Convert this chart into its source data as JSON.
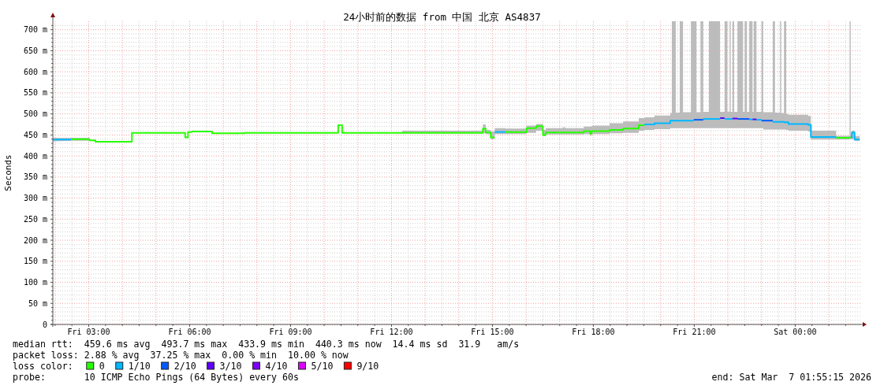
{
  "chart_data": {
    "type": "line",
    "title": "24小时前的数据 from 中国 北京 AS4837",
    "ylabel": "Seconds",
    "legend_title": "loss color:",
    "legend": "bottom",
    "grid": true,
    "xlim": [
      "2026-03-06T01:56",
      "2026-03-07T01:59"
    ],
    "xticks": [
      {
        "value": "2026-03-06T02:00",
        "label": null
      },
      {
        "value": "2026-03-06T02:30",
        "label": null
      },
      {
        "value": "2026-03-06T03:00",
        "label": "Fri 03:00"
      },
      {
        "value": "2026-03-06T03:30",
        "label": null
      },
      {
        "value": "2026-03-06T04:00",
        "label": null
      },
      {
        "value": "2026-03-06T04:30",
        "label": null
      },
      {
        "value": "2026-03-06T05:00",
        "label": null
      },
      {
        "value": "2026-03-06T05:30",
        "label": null
      },
      {
        "value": "2026-03-06T06:00",
        "label": "Fri 06:00"
      },
      {
        "value": "2026-03-06T06:30",
        "label": null
      },
      {
        "value": "2026-03-06T07:00",
        "label": null
      },
      {
        "value": "2026-03-06T07:30",
        "label": null
      },
      {
        "value": "2026-03-06T08:00",
        "label": null
      },
      {
        "value": "2026-03-06T08:30",
        "label": null
      },
      {
        "value": "2026-03-06T09:00",
        "label": "Fri 09:00"
      },
      {
        "value": "2026-03-06T09:30",
        "label": null
      },
      {
        "value": "2026-03-06T10:00",
        "label": null
      },
      {
        "value": "2026-03-06T10:30",
        "label": null
      },
      {
        "value": "2026-03-06T11:00",
        "label": null
      },
      {
        "value": "2026-03-06T11:30",
        "label": null
      },
      {
        "value": "2026-03-06T12:00",
        "label": "Fri 12:00"
      },
      {
        "value": "2026-03-06T12:30",
        "label": null
      },
      {
        "value": "2026-03-06T13:00",
        "label": null
      },
      {
        "value": "2026-03-06T13:30",
        "label": null
      },
      {
        "value": "2026-03-06T14:00",
        "label": null
      },
      {
        "value": "2026-03-06T14:30",
        "label": null
      },
      {
        "value": "2026-03-06T15:00",
        "label": "Fri 15:00"
      },
      {
        "value": "2026-03-06T15:30",
        "label": null
      },
      {
        "value": "2026-03-06T16:00",
        "label": null
      },
      {
        "value": "2026-03-06T16:30",
        "label": null
      },
      {
        "value": "2026-03-06T17:00",
        "label": null
      },
      {
        "value": "2026-03-06T17:30",
        "label": null
      },
      {
        "value": "2026-03-06T18:00",
        "label": "Fri 18:00"
      },
      {
        "value": "2026-03-06T18:30",
        "label": null
      },
      {
        "value": "2026-03-06T19:00",
        "label": null
      },
      {
        "value": "2026-03-06T19:30",
        "label": null
      },
      {
        "value": "2026-03-06T20:00",
        "label": null
      },
      {
        "value": "2026-03-06T20:30",
        "label": null
      },
      {
        "value": "2026-03-06T21:00",
        "label": "Fri 21:00"
      },
      {
        "value": "2026-03-06T21:30",
        "label": null
      },
      {
        "value": "2026-03-06T22:00",
        "label": null
      },
      {
        "value": "2026-03-06T22:30",
        "label": null
      },
      {
        "value": "2026-03-06T23:00",
        "label": null
      },
      {
        "value": "2026-03-06T23:30",
        "label": null
      },
      {
        "value": "2026-03-07T00:00",
        "label": "Sat 00:00"
      },
      {
        "value": "2026-03-07T00:30",
        "label": null
      },
      {
        "value": "2026-03-07T01:00",
        "label": null
      },
      {
        "value": "2026-03-07T01:30",
        "label": null
      }
    ],
    "ylim": [
      0,
      720
    ],
    "yticks": [
      0,
      {
        "value": 10,
        "label": null
      },
      {
        "value": 20,
        "label": null
      },
      {
        "value": 30,
        "label": null
      },
      {
        "value": 40,
        "label": null
      },
      {
        "value": 50,
        "label": "50 m"
      },
      {
        "value": 60,
        "label": null
      },
      {
        "value": 70,
        "label": null
      },
      {
        "value": 80,
        "label": null
      },
      {
        "value": 90,
        "label": null
      },
      {
        "value": 100,
        "label": "100 m"
      },
      {
        "value": 110,
        "label": null
      },
      {
        "value": 120,
        "label": null
      },
      {
        "value": 130,
        "label": null
      },
      {
        "value": 140,
        "label": null
      },
      {
        "value": 150,
        "label": "150 m"
      },
      {
        "value": 160,
        "label": null
      },
      {
        "value": 170,
        "label": null
      },
      {
        "value": 180,
        "label": null
      },
      {
        "value": 190,
        "label": null
      },
      {
        "value": 200,
        "label": "200 m"
      },
      {
        "value": 210,
        "label": null
      },
      {
        "value": 220,
        "label": null
      },
      {
        "value": 230,
        "label": null
      },
      {
        "value": 240,
        "label": null
      },
      {
        "value": 250,
        "label": "250 m"
      },
      {
        "value": 260,
        "label": null
      },
      {
        "value": 270,
        "label": null
      },
      {
        "value": 280,
        "label": null
      },
      {
        "value": 290,
        "label": null
      },
      {
        "value": 300,
        "label": "300 m"
      },
      {
        "value": 310,
        "label": null
      },
      {
        "value": 320,
        "label": null
      },
      {
        "value": 330,
        "label": null
      },
      {
        "value": 340,
        "label": null
      },
      {
        "value": 350,
        "label": "350 m"
      },
      {
        "value": 360,
        "label": null
      },
      {
        "value": 370,
        "label": null
      },
      {
        "value": 380,
        "label": null
      },
      {
        "value": 390,
        "label": null
      },
      {
        "value": 400,
        "label": "400 m"
      },
      {
        "value": 410,
        "label": null
      },
      {
        "value": 420,
        "label": null
      },
      {
        "value": 430,
        "label": null
      },
      {
        "value": 440,
        "label": null
      },
      {
        "value": 450,
        "label": "450 m"
      },
      {
        "value": 460,
        "label": null
      },
      {
        "value": 470,
        "label": null
      },
      {
        "value": 480,
        "label": null
      },
      {
        "value": 490,
        "label": null
      },
      {
        "value": 500,
        "label": "500 m"
      },
      {
        "value": 510,
        "label": null
      },
      {
        "value": 520,
        "label": null
      },
      {
        "value": 530,
        "label": null
      },
      {
        "value": 540,
        "label": null
      },
      {
        "value": 550,
        "label": "550 m"
      },
      {
        "value": 560,
        "label": null
      },
      {
        "value": 570,
        "label": null
      },
      {
        "value": 580,
        "label": null
      },
      {
        "value": 590,
        "label": null
      },
      {
        "value": 600,
        "label": "600 m"
      },
      {
        "value": 610,
        "label": null
      },
      {
        "value": 620,
        "label": null
      },
      {
        "value": 630,
        "label": null
      },
      {
        "value": 640,
        "label": null
      },
      {
        "value": 650,
        "label": "650 m"
      },
      {
        "value": 660,
        "label": null
      },
      {
        "value": 670,
        "label": null
      },
      {
        "value": 680,
        "label": null
      },
      {
        "value": 690,
        "label": null
      },
      {
        "value": 700,
        "label": "700 m"
      },
      {
        "value": 710,
        "label": null
      }
    ],
    "series": [
      {
        "name": "0",
        "color": "#26ff00",
        "x": [
          "2026-03-06T01:56",
          "2026-03-06T02:29",
          "2026-03-06T03:01",
          "2026-03-06T03:01",
          "2026-03-06T03:12",
          "2026-03-06T03:12",
          "2026-03-06T04:17",
          "2026-03-06T04:17",
          "2026-03-06T05:52",
          "2026-03-06T05:52",
          "2026-03-06T05:57",
          "2026-03-06T05:57",
          "2026-03-06T06:04",
          "2026-03-06T06:04",
          "2026-03-06T06:40",
          "2026-03-06T06:40",
          "2026-03-06T07:38",
          "2026-03-06T07:38",
          "2026-03-06T10:25",
          "2026-03-06T10:25",
          "2026-03-06T10:32",
          "2026-03-06T10:32",
          "2026-03-06T12:19",
          "2026-03-06T12:19",
          "2026-03-06T14:43",
          "2026-03-06T14:43",
          "2026-03-06T14:48",
          "2026-03-06T14:48",
          "2026-03-06T14:57",
          "2026-03-06T14:57",
          "2026-03-06T15:04",
          "2026-03-06T15:04",
          "2026-03-06T15:23",
          "2026-03-06T15:23",
          "2026-03-06T16:01",
          "2026-03-06T16:01",
          "2026-03-06T16:18",
          "2026-03-06T16:18",
          "2026-03-06T16:30",
          "2026-03-06T16:30",
          "2026-03-06T16:35",
          "2026-03-06T16:35",
          "2026-03-06T17:05",
          "2026-03-06T17:05",
          "2026-03-06T17:10",
          "2026-03-06T17:10",
          "2026-03-06T17:43",
          "2026-03-06T17:43",
          "2026-03-06T17:54",
          "2026-03-06T17:54",
          "2026-03-06T17:57",
          "2026-03-06T17:57",
          "2026-03-06T18:29",
          "2026-03-06T18:29",
          "2026-03-06T18:53",
          "2026-03-06T18:53",
          "2026-03-06T19:21",
          "2026-03-06T19:21",
          "2026-03-06T19:31",
          "2026-03-06T19:31",
          "2026-03-06T19:49",
          "2026-03-06T19:49",
          "2026-03-06T20:17",
          "2026-03-06T20:17",
          "2026-03-06T20:20",
          "2026-03-06T20:20",
          "2026-03-06T20:27",
          "2026-03-06T20:27",
          "2026-03-06T20:34",
          "2026-03-06T20:34",
          "2026-03-06T20:40",
          "2026-03-06T20:40",
          "2026-03-06T20:54",
          "2026-03-06T20:54",
          "2026-03-06T21:04",
          "2026-03-06T21:04",
          "2026-03-06T21:11",
          "2026-03-06T21:11",
          "2026-03-06T21:16",
          "2026-03-06T21:16",
          "2026-03-06T21:26",
          "2026-03-06T21:26",
          "2026-03-06T21:46",
          "2026-03-06T21:46",
          "2026-03-06T21:54",
          "2026-03-06T21:54",
          "2026-03-06T21:59",
          "2026-03-06T21:59",
          "2026-03-06T22:03",
          "2026-03-06T22:03",
          "2026-03-06T22:05",
          "2026-03-06T22:05",
          "2026-03-06T22:08",
          "2026-03-06T22:08",
          "2026-03-06T22:11",
          "2026-03-06T22:11",
          "2026-03-06T22:17",
          "2026-03-06T22:17",
          "2026-03-06T22:27",
          "2026-03-06T22:27",
          "2026-03-06T22:30",
          "2026-03-06T22:30",
          "2026-03-06T22:34",
          "2026-03-06T22:34",
          "2026-03-06T22:38",
          "2026-03-06T22:38",
          "2026-03-06T22:44",
          "2026-03-06T22:44",
          "2026-03-06T22:46",
          "2026-03-06T22:46",
          "2026-03-06T22:51",
          "2026-03-06T22:51",
          "2026-03-06T23:00",
          "2026-03-06T23:00",
          "2026-03-06T23:03",
          "2026-03-06T23:03",
          "2026-03-06T23:20",
          "2026-03-06T23:20",
          "2026-03-06T23:24",
          "2026-03-06T23:24",
          "2026-03-06T23:33",
          "2026-03-06T23:33",
          "2026-03-06T23:35",
          "2026-03-06T23:35",
          "2026-03-06T23:40",
          "2026-03-06T23:40",
          "2026-03-06T23:44",
          "2026-03-06T23:44",
          "2026-03-06T23:48",
          "2026-03-06T23:48",
          "2026-03-07T00:23",
          "2026-03-07T00:23",
          "2026-03-07T00:28",
          "2026-03-07T00:28",
          "2026-03-07T01:13",
          "2026-03-07T01:13",
          "2026-03-07T01:37",
          "2026-03-07T01:37",
          "2026-03-07T01:39",
          "2026-03-07T01:39",
          "2026-03-07T01:41",
          "2026-03-07T01:41",
          "2026-03-07T01:46",
          "2026-03-07T01:46",
          "2026-03-07T01:55"
        ],
        "values": [
          null,
          440,
          440,
          437,
          437,
          434,
          434,
          455,
          455,
          444,
          444,
          457,
          457,
          458,
          458,
          454,
          454,
          455,
          455,
          473,
          473,
          455,
          455,
          455,
          455,
          465,
          465,
          456,
          456,
          444,
          444,
          null,
          null,
          457,
          457,
          466,
          466,
          471,
          471,
          450,
          450,
          456,
          456,
          456,
          456,
          456,
          456,
          459,
          459,
          453,
          453,
          459,
          459,
          462,
          462,
          465,
          465,
          473,
          473,
          null,
          null,
          null,
          null,
          null,
          null,
          null,
          null,
          null,
          null,
          null,
          null,
          null,
          null,
          null,
          null,
          null,
          null,
          null,
          null,
          null,
          null,
          null,
          null,
          null,
          null,
          null,
          null,
          null,
          null,
          null,
          null,
          null,
          null,
          null,
          null,
          null,
          null,
          null,
          null,
          null,
          null,
          null,
          null,
          null,
          null,
          null,
          null,
          null,
          null,
          null,
          null,
          null,
          null,
          null,
          null,
          null,
          null,
          null,
          null,
          null,
          null,
          null,
          null,
          null,
          null,
          null,
          null,
          null,
          null,
          null,
          null,
          null,
          null,
          null,
          null,
          443,
          443,
          444,
          444,
          null,
          null,
          null,
          null,
          null,
          null
        ],
        "lower": [
          435,
          436,
          436,
          null,
          null,
          null,
          null,
          null,
          null,
          null,
          null,
          null,
          null,
          null,
          null,
          null,
          null,
          null,
          null,
          null,
          null,
          null,
          null,
          454,
          454,
          454,
          454,
          452,
          452,
          440,
          440,
          452,
          452,
          452,
          452,
          455,
          455,
          460,
          460,
          447,
          447,
          451,
          451,
          451,
          451,
          451,
          451,
          452,
          452,
          448,
          448,
          452,
          452,
          454,
          454,
          455,
          455,
          460,
          460,
          462,
          462,
          464,
          464,
          466,
          466,
          466,
          466,
          466,
          466,
          466,
          466,
          466,
          466,
          466,
          466,
          466,
          466,
          466,
          466,
          466,
          466,
          466,
          466,
          466,
          466,
          466,
          466,
          466,
          466,
          466,
          466,
          466,
          466,
          466,
          466,
          466,
          466,
          466,
          466,
          466,
          466,
          466,
          466,
          466,
          466,
          466,
          466,
          466,
          466,
          466,
          466,
          466,
          466,
          466,
          466,
          463,
          463,
          463,
          463,
          463,
          463,
          463,
          463,
          463,
          463,
          463,
          463,
          462,
          462,
          460,
          460,
          458,
          458,
          439,
          439,
          439,
          439,
          440,
          440,
          440,
          440,
          440,
          440,
          436,
          436
        ],
        "upper": [
          443,
          443,
          443,
          null,
          null,
          null,
          null,
          null,
          null,
          null,
          null,
          null,
          null,
          null,
          null,
          null,
          null,
          null,
          null,
          null,
          null,
          null,
          null,
          460,
          460,
          475,
          475,
          462,
          462,
          458,
          458,
          466,
          466,
          465,
          465,
          472,
          472,
          476,
          476,
          462,
          462,
          466,
          466,
          468,
          468,
          466,
          466,
          470,
          470,
          470,
          470,
          472,
          472,
          478,
          478,
          482,
          482,
          490,
          490,
          492,
          492,
          496,
          496,
          502,
          502,
          720,
          720,
          503,
          503,
          720,
          720,
          504,
          504,
          720,
          720,
          504,
          504,
          720,
          720,
          505,
          505,
          720,
          720,
          505,
          505,
          720,
          720,
          505,
          505,
          720,
          720,
          505,
          505,
          720,
          720,
          505,
          505,
          720,
          720,
          505,
          505,
          720,
          720,
          505,
          505,
          720,
          720,
          505,
          505,
          720,
          720,
          505,
          505,
          720,
          720,
          504,
          504,
          720,
          720,
          503,
          503,
          720,
          720,
          502,
          502,
          720,
          720,
          500,
          500,
          498,
          498,
          495,
          495,
          460,
          460,
          448,
          448,
          720,
          720,
          448,
          448,
          460,
          460,
          447,
          447
        ]
      },
      {
        "name": "1/10",
        "color": "#00b8ff",
        "x": [
          "2026-03-06T01:56",
          "2026-03-06T02:29"
        ],
        "values": [
          439,
          439
        ]
      },
      {
        "name": "2/10",
        "color": "#0059ff",
        "x": [
          "2026-03-06T20:59",
          "2026-03-06T21:16"
        ],
        "values": [
          486,
          486
        ]
      },
      {
        "name": "3/10",
        "color": "#5e00ff",
        "x": [
          "2026-03-06T21:46",
          "2026-03-06T21:54"
        ],
        "values": [
          490,
          490
        ]
      },
      {
        "name": "4/10",
        "color": "#7e00ff"
      },
      {
        "name": "5/10",
        "color": "#dd00ff"
      },
      {
        "name": "9/10",
        "color": "#ff0000"
      },
      {
        "color": "#00b8ff",
        "x": [
          "2026-03-06T15:04",
          "2026-03-06T15:23"
        ],
        "values": [
          457,
          457
        ]
      },
      {
        "color": "#00b8ff",
        "x": [
          "2026-03-06T19:31",
          "2026-03-06T19:49",
          "2026-03-06T19:49",
          "2026-03-06T20:17",
          "2026-03-06T20:17",
          "2026-03-06T20:59"
        ],
        "values": [
          475,
          475,
          478,
          478,
          484,
          484
        ]
      },
      {
        "color": "#00b8ff",
        "x": [
          "2026-03-06T21:16",
          "2026-03-06T21:46"
        ],
        "values": [
          488,
          488
        ]
      },
      {
        "color": "#00b8ff",
        "x": [
          "2026-03-06T21:54",
          "2026-03-06T22:08"
        ],
        "values": [
          488,
          488
        ]
      },
      {
        "color": "#00b8ff",
        "x": [
          "2026-03-06T22:38",
          "2026-03-06T22:44"
        ],
        "values": [
          487,
          487
        ]
      },
      {
        "color": "#00b8ff",
        "x": [
          "2026-03-06T22:51",
          "2026-03-06T23:00"
        ],
        "values": [
          486,
          486
        ]
      },
      {
        "color": "#00b8ff",
        "x": [
          "2026-03-06T23:20",
          "2026-03-06T23:40",
          "2026-03-06T23:40",
          "2026-03-06T23:48",
          "2026-03-06T23:48",
          "2026-03-07T00:23",
          "2026-03-07T00:23",
          "2026-03-07T00:28",
          "2026-03-07T00:28",
          "2026-03-07T01:13"
        ],
        "values": [
          481,
          481,
          480,
          480,
          476,
          476,
          474,
          474,
          445,
          445
        ]
      },
      {
        "color": "#00b8ff",
        "x": [
          "2026-03-07T01:39",
          "2026-03-07T01:41",
          "2026-03-07T01:41",
          "2026-03-07T01:46",
          "2026-03-07T01:46",
          "2026-03-07T01:55"
        ],
        "values": [
          444,
          444,
          456,
          456,
          439,
          439
        ]
      },
      {
        "color": "#0059ff",
        "x": [
          "2026-03-06T22:17",
          "2026-03-06T22:38"
        ],
        "values": [
          488,
          488
        ]
      },
      {
        "color": "#0059ff",
        "x": [
          "2026-03-06T23:00",
          "2026-03-06T23:20"
        ],
        "values": [
          484,
          484
        ]
      },
      {
        "color": "#5e00ff",
        "x": [
          "2026-03-06T22:08",
          "2026-03-06T22:17"
        ],
        "values": [
          489,
          489
        ]
      },
      {
        "color": "#5e00ff",
        "x": [
          "2026-03-06T22:44",
          "2026-03-06T22:51"
        ],
        "values": [
          487,
          487
        ]
      }
    ],
    "annotations": [
      "median rtt:  459.6 ms avg  493.7 ms max  433.9 ms min  440.3 ms now  14.4 ms sd  31.9   am/s",
      "packet loss: 2.88 % avg  37.25 % max  0.00 % min  10.00 % now",
      "probe:       10 ICMP Echo Pings (64 Bytes) every 60s",
      "end: Sat Mar  7 01:55:15 2026"
    ]
  }
}
